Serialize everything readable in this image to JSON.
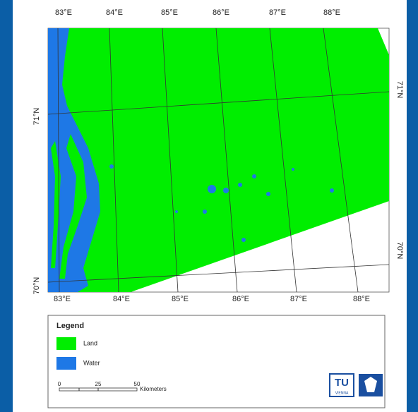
{
  "map": {
    "top_labels": [
      "83°E",
      "84°E",
      "85°E",
      "86°E",
      "87°E",
      "88°E"
    ],
    "bottom_labels": [
      "83°E",
      "84°E",
      "85°E",
      "86°E",
      "87°E",
      "88°E"
    ],
    "left_labels": [
      "71°N",
      "70°N"
    ],
    "right_labels": [
      "71°N",
      "70°N"
    ]
  },
  "legend": {
    "title": "Legend",
    "items": [
      {
        "label": "Land",
        "color": "#00ee00"
      },
      {
        "label": "Water",
        "color": "#1e78e6"
      }
    ]
  },
  "scale_bar": {
    "ticks": [
      "0",
      "25",
      "50"
    ],
    "unit": "Kilometers"
  },
  "logo": {
    "text": "TU",
    "subtext": "VIENNA"
  }
}
